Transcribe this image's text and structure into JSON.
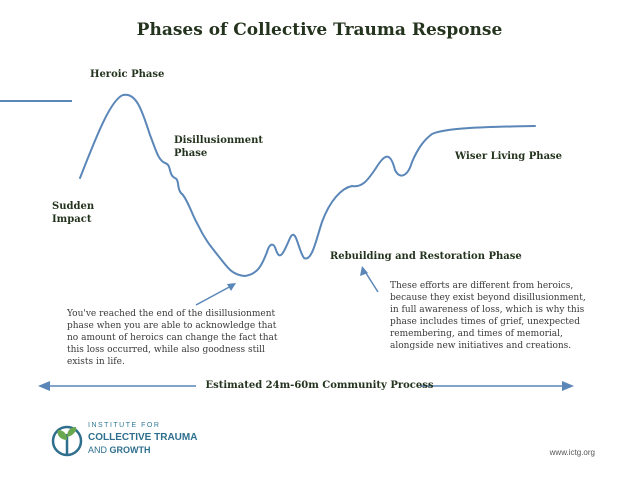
{
  "title": "Phases of Collective Trauma Response",
  "phases": {
    "heroic": "Heroic Phase",
    "disillusionment": "Disillusionment Phase",
    "sudden_impact": "Sudden Impact",
    "wiser_living": "Wiser Living Phase",
    "rebuilding": "Rebuilding and Restoration Phase"
  },
  "notes": {
    "disillusionment_end": "You've reached the end of the disillusionment phase when you are able to acknowledge that no amount of heroics can change the fact that this loss occurred, while also goodness still exists in life.",
    "rebuilding": "These efforts are different from heroics, because they exist beyond disillusionment, in full awareness of loss, which is why this phase includes times of grief, unexpected remembering, and times of memorial, alongside new initiatives and creations."
  },
  "process_label": "Estimated 24m-60m Community Process",
  "logo": {
    "line1": "INSTITUTE FOR",
    "line2": "COLLECTIVE TRAUMA",
    "line3_prefix": "AND",
    "line3_word": "GROWTH",
    "icon": "sprout-icon"
  },
  "url": "www.ictg.org",
  "colors": {
    "curve": "#5a86b8",
    "title": "#24331e",
    "logo": "#2f6f8e",
    "leaf_green": "#6aa84f"
  }
}
